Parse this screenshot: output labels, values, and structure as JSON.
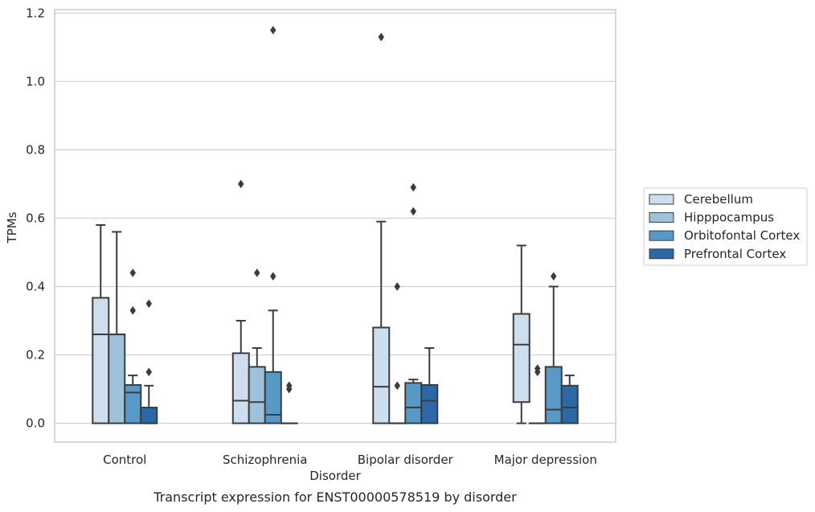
{
  "chart_data": {
    "type": "box",
    "title": "",
    "caption": "Transcript expression for ENST00000578519 by disorder",
    "xlabel": "Disorder",
    "ylabel": "TPMs",
    "ylim": [
      -0.055,
      1.21
    ],
    "yticks": [
      0.0,
      0.2,
      0.4,
      0.6,
      0.8,
      1.0,
      1.2
    ],
    "ytick_labels": [
      "0.0",
      "0.2",
      "0.4",
      "0.6",
      "0.8",
      "1.0",
      "1.2"
    ],
    "grid": "horizontal",
    "legend_position": "right",
    "categories": [
      "Control",
      "Schizophrenia",
      "Bipolar disorder",
      "Major depression"
    ],
    "series": [
      {
        "name": "Cerebellum",
        "color": "#cddeee",
        "boxes": [
          {
            "whisker_low": 0.0,
            "q1": 0.0,
            "median": 0.26,
            "q3": 0.367,
            "whisker_high": 0.58,
            "outliers": []
          },
          {
            "whisker_low": 0.0,
            "q1": 0.0,
            "median": 0.066,
            "q3": 0.205,
            "whisker_high": 0.3,
            "outliers": [
              0.7
            ]
          },
          {
            "whisker_low": 0.0,
            "q1": 0.0,
            "median": 0.107,
            "q3": 0.28,
            "whisker_high": 0.59,
            "outliers": [
              1.13
            ]
          },
          {
            "whisker_low": 0.0,
            "q1": 0.062,
            "median": 0.23,
            "q3": 0.32,
            "whisker_high": 0.52,
            "outliers": []
          }
        ]
      },
      {
        "name": "Hipppocampus",
        "color": "#9dc2da",
        "boxes": [
          {
            "whisker_low": 0.0,
            "q1": 0.0,
            "median": 0.26,
            "q3": 0.26,
            "whisker_high": 0.56,
            "outliers": []
          },
          {
            "whisker_low": 0.0,
            "q1": 0.0,
            "median": 0.062,
            "q3": 0.165,
            "whisker_high": 0.22,
            "outliers": [
              0.44
            ]
          },
          {
            "whisker_low": 0.0,
            "q1": 0.0,
            "median": 0.0,
            "q3": 0.0,
            "whisker_high": 0.0,
            "outliers": [
              0.11,
              0.4
            ]
          },
          {
            "whisker_low": 0.0,
            "q1": 0.0,
            "median": 0.0,
            "q3": 0.0,
            "whisker_high": 0.0,
            "outliers": [
              0.15,
              0.16
            ]
          }
        ]
      },
      {
        "name": "Orbitofontal Cortex",
        "color": "#5799c7",
        "boxes": [
          {
            "whisker_low": 0.0,
            "q1": 0.0,
            "median": 0.09,
            "q3": 0.112,
            "whisker_high": 0.14,
            "outliers": [
              0.33,
              0.44
            ]
          },
          {
            "whisker_low": 0.0,
            "q1": 0.0,
            "median": 0.025,
            "q3": 0.15,
            "whisker_high": 0.33,
            "outliers": [
              0.43,
              1.15
            ]
          },
          {
            "whisker_low": 0.0,
            "q1": 0.0,
            "median": 0.046,
            "q3": 0.118,
            "whisker_high": 0.128,
            "outliers": [
              0.62,
              0.69
            ]
          },
          {
            "whisker_low": 0.0,
            "q1": 0.0,
            "median": 0.04,
            "q3": 0.165,
            "whisker_high": 0.4,
            "outliers": [
              0.43
            ]
          }
        ]
      },
      {
        "name": "Prefrontal Cortex",
        "color": "#2a69a5",
        "boxes": [
          {
            "whisker_low": 0.0,
            "q1": 0.0,
            "median": 0.0,
            "q3": 0.046,
            "whisker_high": 0.11,
            "outliers": [
              0.15,
              0.35
            ]
          },
          {
            "whisker_low": 0.0,
            "q1": 0.0,
            "median": 0.0,
            "q3": 0.0,
            "whisker_high": 0.0,
            "outliers": [
              0.1,
              0.11
            ]
          },
          {
            "whisker_low": 0.0,
            "q1": 0.0,
            "median": 0.066,
            "q3": 0.112,
            "whisker_high": 0.22,
            "outliers": []
          },
          {
            "whisker_low": 0.0,
            "q1": 0.0,
            "median": 0.046,
            "q3": 0.11,
            "whisker_high": 0.14,
            "outliers": []
          }
        ]
      }
    ]
  }
}
